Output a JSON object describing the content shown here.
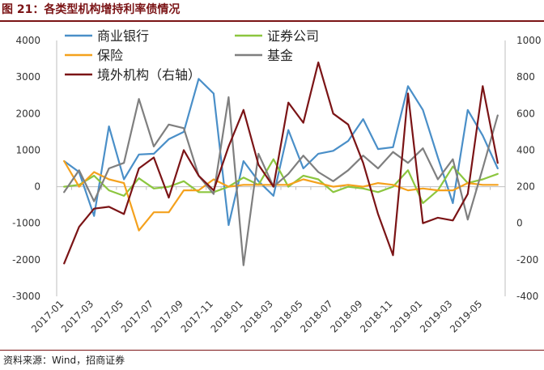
{
  "figure": {
    "title": "图 21：各类型机构增持利率债情况",
    "source": "资料来源：Wind，招商证券"
  },
  "colors": {
    "title": "#7b1416",
    "banks": "#4a8fc8",
    "securities": "#8cc63f",
    "insurance": "#f4a11d",
    "funds": "#7f7f7f",
    "overseas": "#7b1416"
  },
  "chart_data": {
    "type": "line",
    "xlabel": "",
    "ylabel": "",
    "ylim": [
      -3000,
      4000
    ],
    "y2lim": [
      -400,
      1000
    ],
    "yticks": [
      -3000,
      -2000,
      -1000,
      0,
      1000,
      2000,
      3000,
      4000
    ],
    "y2ticks": [
      -400,
      -200,
      0,
      200,
      400,
      600,
      800,
      1000
    ],
    "grid": false,
    "legend": "top-left",
    "x": [
      "2017-01",
      "2017-02",
      "2017-03",
      "2017-04",
      "2017-05",
      "2017-06",
      "2017-07",
      "2017-08",
      "2017-09",
      "2017-10",
      "2017-11",
      "2017-12",
      "2018-01",
      "2018-02",
      "2018-03",
      "2018-04",
      "2018-05",
      "2018-06",
      "2018-07",
      "2018-08",
      "2018-09",
      "2018-10",
      "2018-11",
      "2018-12",
      "2019-01",
      "2019-02",
      "2019-03",
      "2019-04",
      "2019-05",
      "2019-06"
    ],
    "xtick_labels": [
      "2017-01",
      "2017-03",
      "2017-05",
      "2017-07",
      "2017-09",
      "2017-11",
      "2018-01",
      "2018-03",
      "2018-05",
      "2018-07",
      "2018-09",
      "2018-11",
      "2019-01",
      "2019-03",
      "2019-05"
    ],
    "series": [
      {
        "name": "商业银行",
        "axis": "left",
        "color": "#4a8fc8",
        "values": [
          700,
          400,
          -800,
          1650,
          200,
          880,
          900,
          1300,
          1500,
          2950,
          2550,
          -1050,
          700,
          150,
          -250,
          1550,
          500,
          900,
          980,
          1250,
          1850,
          1030,
          1080,
          2750,
          2100,
          800,
          -450,
          2100,
          1400,
          500
        ]
      },
      {
        "name": "证券公司",
        "axis": "left",
        "color": "#8cc63f",
        "values": [
          0,
          50,
          300,
          -100,
          -250,
          230,
          -50,
          0,
          150,
          -150,
          -150,
          0,
          250,
          50,
          750,
          0,
          300,
          200,
          -150,
          0,
          -50,
          -150,
          0,
          450,
          -450,
          -100,
          550,
          100,
          200,
          350
        ]
      },
      {
        "name": "保险",
        "axis": "left",
        "color": "#f4a11d",
        "values": [
          700,
          0,
          400,
          200,
          100,
          -1200,
          -700,
          -700,
          -100,
          -100,
          200,
          0,
          50,
          50,
          50,
          50,
          200,
          100,
          0,
          50,
          0,
          100,
          50,
          -100,
          -50,
          -100,
          -100,
          100,
          50,
          50
        ]
      },
      {
        "name": "基金",
        "axis": "left",
        "color": "#7f7f7f",
        "values": [
          -150,
          450,
          -400,
          500,
          650,
          2400,
          1100,
          1700,
          1600,
          300,
          -200,
          2450,
          -2150,
          900,
          0,
          350,
          850,
          400,
          150,
          450,
          850,
          500,
          950,
          650,
          1050,
          200,
          750,
          -900,
          500,
          1950
        ]
      },
      {
        "name": "境外机构（右轴）",
        "axis": "right",
        "color": "#7b1416",
        "values": [
          -220,
          -20,
          80,
          90,
          50,
          300,
          360,
          140,
          400,
          260,
          180,
          420,
          620,
          320,
          200,
          660,
          550,
          880,
          600,
          540,
          330,
          50,
          -175,
          710,
          0,
          30,
          15,
          160,
          750,
          330
        ]
      }
    ]
  }
}
